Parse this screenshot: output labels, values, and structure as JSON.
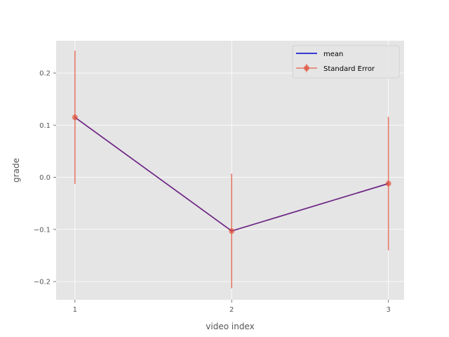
{
  "chart_data": {
    "type": "line",
    "title": "",
    "xlabel": "video index",
    "ylabel": "grade",
    "x": [
      1,
      2,
      3
    ],
    "xlim": [
      0.88,
      3.1
    ],
    "ylim": [
      -0.235,
      0.262
    ],
    "xticks": [
      1,
      2,
      3
    ],
    "yticks": [
      -0.2,
      -0.1,
      0.0,
      0.1,
      0.2
    ],
    "ytick_labels": [
      "−0.2",
      "−0.1",
      "0.0",
      "0.1",
      "0.2"
    ],
    "grid": true,
    "legend_position": "top-right",
    "series": [
      {
        "name": "mean",
        "kind": "line",
        "color": "#0000cc",
        "values": [
          0.115,
          -0.103,
          -0.012
        ]
      },
      {
        "name": "Standard Error",
        "kind": "errorbar",
        "color": "#e24a33",
        "values": [
          0.115,
          -0.103,
          -0.012
        ],
        "error": [
          0.128,
          0.11,
          0.128
        ]
      }
    ],
    "colors": {
      "background": "#e5e5e5",
      "grid": "#ffffff",
      "overlap_line": "#6a2aa8"
    }
  }
}
